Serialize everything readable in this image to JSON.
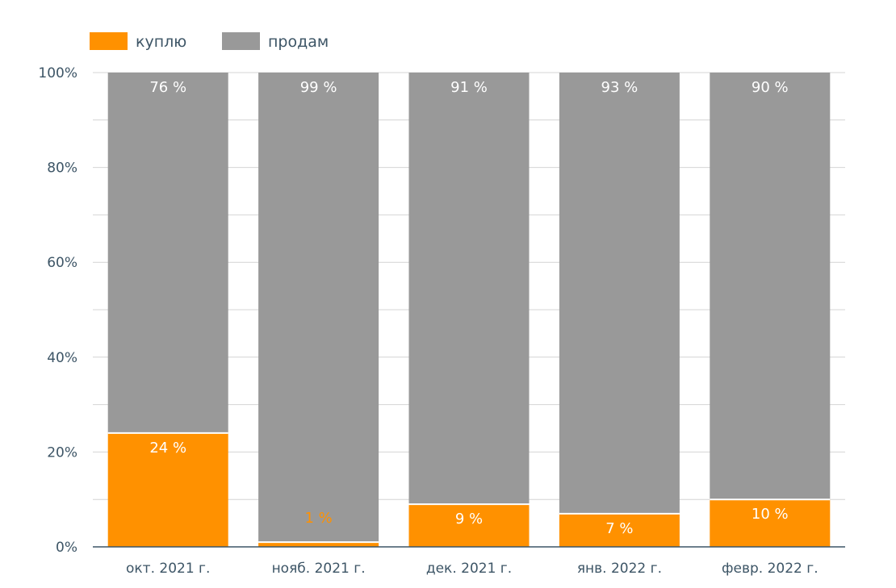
{
  "chart_data": {
    "type": "bar",
    "stacked": true,
    "categories": [
      "окт. 2021 г.",
      "нояб. 2021 г.",
      "дек. 2021 г.",
      "янв. 2022 г.",
      "февр. 2022 г."
    ],
    "series": [
      {
        "name": "куплю",
        "values": [
          24,
          1,
          9,
          7,
          10
        ],
        "labels": [
          "24 %",
          "1 %",
          "9 %",
          "7 %",
          "10 %"
        ],
        "color": "#ff9100"
      },
      {
        "name": "продам",
        "values": [
          76,
          99,
          91,
          93,
          90
        ],
        "labels": [
          "76 %",
          "99 %",
          "91 %",
          "93 %",
          "90 %"
        ],
        "color": "#999999"
      }
    ],
    "ylim": [
      0,
      100
    ],
    "yticks": [
      "0%",
      "20%",
      "40%",
      "60%",
      "80%",
      "100%"
    ],
    "grid": true,
    "legend_position": "top-left"
  }
}
